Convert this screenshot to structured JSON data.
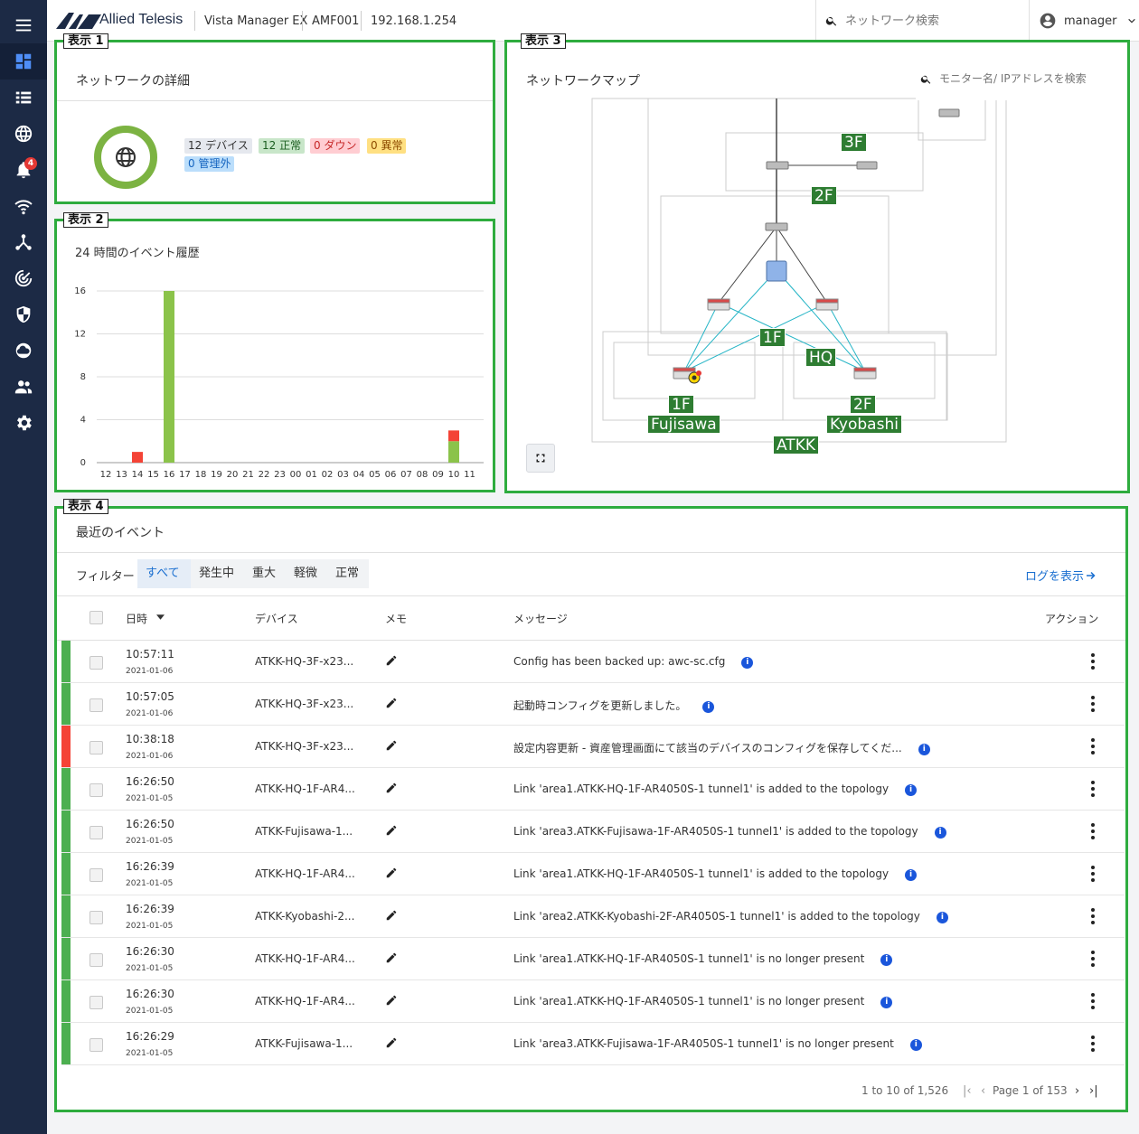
{
  "topbar": {
    "brand": "Allied Telesis",
    "product": "Vista Manager EX",
    "node": "AMF001",
    "ip": "192.168.1.254",
    "search_placeholder": "ネットワーク検索",
    "user": "manager"
  },
  "sidebar": {
    "items": [
      {
        "name": "menu-icon"
      },
      {
        "name": "dashboard-icon",
        "active": true
      },
      {
        "name": "list-icon"
      },
      {
        "name": "globe-icon"
      },
      {
        "name": "bell-icon",
        "badge": "4"
      },
      {
        "name": "wifi-icon"
      },
      {
        "name": "topology-icon"
      },
      {
        "name": "radar-icon"
      },
      {
        "name": "shield-icon"
      },
      {
        "name": "cloud-icon"
      },
      {
        "name": "users-icon"
      },
      {
        "name": "gear-icon"
      }
    ]
  },
  "labels": {
    "p1": "表示 1",
    "p2": "表示 2",
    "p3": "表示 3",
    "p4": "表示 4"
  },
  "details": {
    "title": "ネットワークの詳細",
    "chips": {
      "devices": "12 デバイス",
      "normal": "12 正常",
      "down": "0 ダウン",
      "abnormal": "0 異常",
      "unmanaged": "0 管理外"
    }
  },
  "history": {
    "title": "24 時間のイベント履歴"
  },
  "chart_data": {
    "type": "bar",
    "title": "24 時間のイベント履歴",
    "categories": [
      "12",
      "13",
      "14",
      "15",
      "16",
      "17",
      "18",
      "19",
      "20",
      "21",
      "22",
      "23",
      "00",
      "01",
      "02",
      "03",
      "04",
      "05",
      "06",
      "07",
      "08",
      "09",
      "10",
      "11"
    ],
    "series": [
      {
        "color": "#f44336",
        "values": [
          0,
          0,
          1,
          0,
          0,
          0,
          0,
          0,
          0,
          0,
          0,
          0,
          0,
          0,
          0,
          0,
          0,
          0,
          0,
          0,
          0,
          0,
          1,
          0
        ]
      },
      {
        "color": "#8bc34a",
        "values": [
          0,
          0,
          0,
          0,
          16,
          0,
          0,
          0,
          0,
          0,
          0,
          0,
          0,
          0,
          0,
          0,
          0,
          0,
          0,
          0,
          0,
          0,
          2,
          0
        ]
      }
    ],
    "stacked": true,
    "yticks": [
      "0",
      "4",
      "8",
      "12",
      "16"
    ],
    "ylim": [
      0,
      16
    ],
    "grid": true
  },
  "map": {
    "title": "ネットワークマップ",
    "search_placeholder": "モニター名/ IPアドレスを検索",
    "tags": {
      "f3": "3F",
      "f2": "2F",
      "f1": "1F",
      "hq": "HQ",
      "fuj_floor": "1F",
      "fuj": "Fujisawa",
      "kyo_floor": "2F",
      "kyo": "Kyobashi",
      "atkk": "ATKK"
    }
  },
  "events": {
    "title": "最近のイベント",
    "filter_label": "フィルター",
    "tabs": [
      "すべて",
      "発生中",
      "重大",
      "軽微",
      "正常"
    ],
    "log_link": "ログを表示",
    "columns": {
      "datetime": "日時",
      "device": "デバイス",
      "memo": "メモ",
      "message": "メッセージ",
      "action": "アクション"
    },
    "status_colors": {
      "normal": "#4caf50",
      "critical": "#f44336"
    },
    "rows": [
      {
        "time": "10:57:11",
        "date": "2021-01-06",
        "device": "ATKK-HQ-3F-x23...",
        "message": "Config has been backed up: awc-sc.cfg",
        "status": "normal"
      },
      {
        "time": "10:57:05",
        "date": "2021-01-06",
        "device": "ATKK-HQ-3F-x23...",
        "message": "起動時コンフィグを更新しました。",
        "status": "normal"
      },
      {
        "time": "10:38:18",
        "date": "2021-01-06",
        "device": "ATKK-HQ-3F-x23...",
        "message": "設定内容更新 - 資産管理画面にて該当のデバイスのコンフィグを保存してくだ...",
        "status": "critical"
      },
      {
        "time": "16:26:50",
        "date": "2021-01-05",
        "device": "ATKK-HQ-1F-AR4...",
        "message": "Link 'area1.ATKK-HQ-1F-AR4050S-1 tunnel1' is added to the topology",
        "status": "normal"
      },
      {
        "time": "16:26:50",
        "date": "2021-01-05",
        "device": "ATKK-Fujisawa-1...",
        "message": "Link 'area3.ATKK-Fujisawa-1F-AR4050S-1 tunnel1' is added to the topology",
        "status": "normal"
      },
      {
        "time": "16:26:39",
        "date": "2021-01-05",
        "device": "ATKK-HQ-1F-AR4...",
        "message": "Link 'area1.ATKK-HQ-1F-AR4050S-1 tunnel1' is added to the topology",
        "status": "normal"
      },
      {
        "time": "16:26:39",
        "date": "2021-01-05",
        "device": "ATKK-Kyobashi-2...",
        "message": "Link 'area2.ATKK-Kyobashi-2F-AR4050S-1 tunnel1' is added to the topology",
        "status": "normal"
      },
      {
        "time": "16:26:30",
        "date": "2021-01-05",
        "device": "ATKK-HQ-1F-AR4...",
        "message": "Link 'area1.ATKK-HQ-1F-AR4050S-1 tunnel1' is no longer present",
        "status": "normal"
      },
      {
        "time": "16:26:30",
        "date": "2021-01-05",
        "device": "ATKK-HQ-1F-AR4...",
        "message": "Link 'area1.ATKK-HQ-1F-AR4050S-1 tunnel1' is no longer present",
        "status": "normal"
      },
      {
        "time": "16:26:29",
        "date": "2021-01-05",
        "device": "ATKK-Fujisawa-1...",
        "message": "Link 'area3.ATKK-Fujisawa-1F-AR4050S-1 tunnel1' is no longer present",
        "status": "normal"
      }
    ],
    "pager": {
      "range": "1 to 10 of 1,526",
      "page": "Page 1 of 153"
    }
  }
}
